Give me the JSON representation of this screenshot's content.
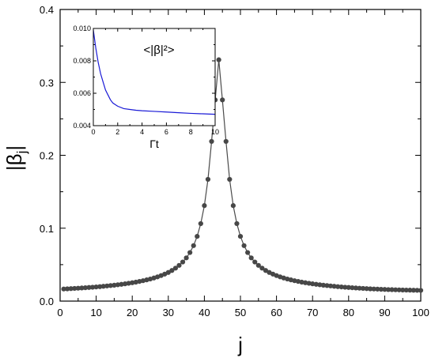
{
  "colors": {
    "main_series": "#4a4a4a",
    "main_marker": "#474747",
    "inset_series": "#1a1ad6",
    "axis": "#000000"
  },
  "chart_data": [
    {
      "type": "line",
      "xlabel": "j",
      "ylabel_main": "|β",
      "ylabel_sub": "j",
      "ylabel_suffix": "|",
      "xlim": [
        0,
        100
      ],
      "ylim": [
        0.0,
        0.4
      ],
      "xticks": [
        "0",
        "10",
        "20",
        "30",
        "40",
        "50",
        "60",
        "70",
        "80",
        "90",
        "100"
      ],
      "yticks": [
        "0.0",
        "0.1",
        "0.2",
        "0.3",
        "0.4"
      ],
      "markers": "filled-circle",
      "grid": false,
      "series": [
        {
          "x": [
            1,
            2,
            3,
            4,
            5,
            6,
            7,
            8,
            9,
            10,
            11,
            12,
            13,
            14,
            15,
            16,
            17,
            18,
            19,
            20,
            21,
            22,
            23,
            24,
            25,
            26,
            27,
            28,
            29,
            30,
            31,
            32,
            33,
            34,
            35,
            36,
            37,
            38,
            39,
            40,
            41,
            42,
            43,
            44,
            45,
            46,
            47,
            48,
            49,
            50,
            51,
            52,
            53,
            54,
            55,
            56,
            57,
            58,
            59,
            60,
            61,
            62,
            63,
            64,
            65,
            66,
            67,
            68,
            69,
            70,
            71,
            72,
            73,
            74,
            75,
            76,
            77,
            78,
            79,
            80,
            81,
            82,
            83,
            84,
            85,
            86,
            87,
            88,
            89,
            90,
            91,
            92,
            93,
            94,
            95,
            96,
            97,
            98,
            99,
            100
          ],
          "values": [
            0.0166,
            0.0168,
            0.0171,
            0.0174,
            0.0177,
            0.018,
            0.0183,
            0.0187,
            0.019,
            0.0194,
            0.0198,
            0.0203,
            0.0208,
            0.0213,
            0.0218,
            0.0224,
            0.023,
            0.0237,
            0.0244,
            0.0252,
            0.026,
            0.027,
            0.028,
            0.0291,
            0.0303,
            0.0317,
            0.0332,
            0.035,
            0.037,
            0.0393,
            0.042,
            0.0452,
            0.049,
            0.0536,
            0.0593,
            0.0666,
            0.0761,
            0.0888,
            0.1063,
            0.131,
            0.167,
            0.219,
            0.276,
            0.331,
            0.276,
            0.219,
            0.167,
            0.131,
            0.1063,
            0.0888,
            0.0761,
            0.0666,
            0.0593,
            0.0536,
            0.049,
            0.0452,
            0.042,
            0.0393,
            0.037,
            0.035,
            0.0332,
            0.0317,
            0.0303,
            0.0291,
            0.028,
            0.027,
            0.026,
            0.0252,
            0.0244,
            0.0237,
            0.023,
            0.0224,
            0.0218,
            0.0213,
            0.0208,
            0.0203,
            0.0198,
            0.0194,
            0.019,
            0.0187,
            0.0183,
            0.018,
            0.0177,
            0.0174,
            0.0171,
            0.0168,
            0.0166,
            0.0164,
            0.0162,
            0.016,
            0.0158,
            0.0157,
            0.0155,
            0.0154,
            0.0152,
            0.0151,
            0.015,
            0.0149,
            0.0148,
            0.0147
          ]
        }
      ]
    },
    {
      "type": "line",
      "inset": true,
      "xlabel": "Γt",
      "annotation": "<|β|²>",
      "xlim": [
        0,
        10
      ],
      "ylim": [
        0.004,
        0.01
      ],
      "xticks": [
        "0",
        "2",
        "4",
        "6",
        "8",
        "10"
      ],
      "yticks": [
        "0.004",
        "0.006",
        "0.008",
        "0.010"
      ],
      "grid": false,
      "series": [
        {
          "x": [
            0,
            0.2,
            0.4,
            0.6,
            0.8,
            1.0,
            1.2,
            1.4,
            1.6,
            1.8,
            2.0,
            2.5,
            3.0,
            3.5,
            4.0,
            5.0,
            6.0,
            7.0,
            8.0,
            9.0,
            10.0
          ],
          "values": [
            0.0099,
            0.0088,
            0.0079,
            0.0072,
            0.0067,
            0.0062,
            0.0059,
            0.0056,
            0.0054,
            0.0053,
            0.0052,
            0.00505,
            0.005,
            0.00495,
            0.00492,
            0.00488,
            0.00484,
            0.0048,
            0.00476,
            0.00473,
            0.0047
          ]
        }
      ]
    }
  ]
}
